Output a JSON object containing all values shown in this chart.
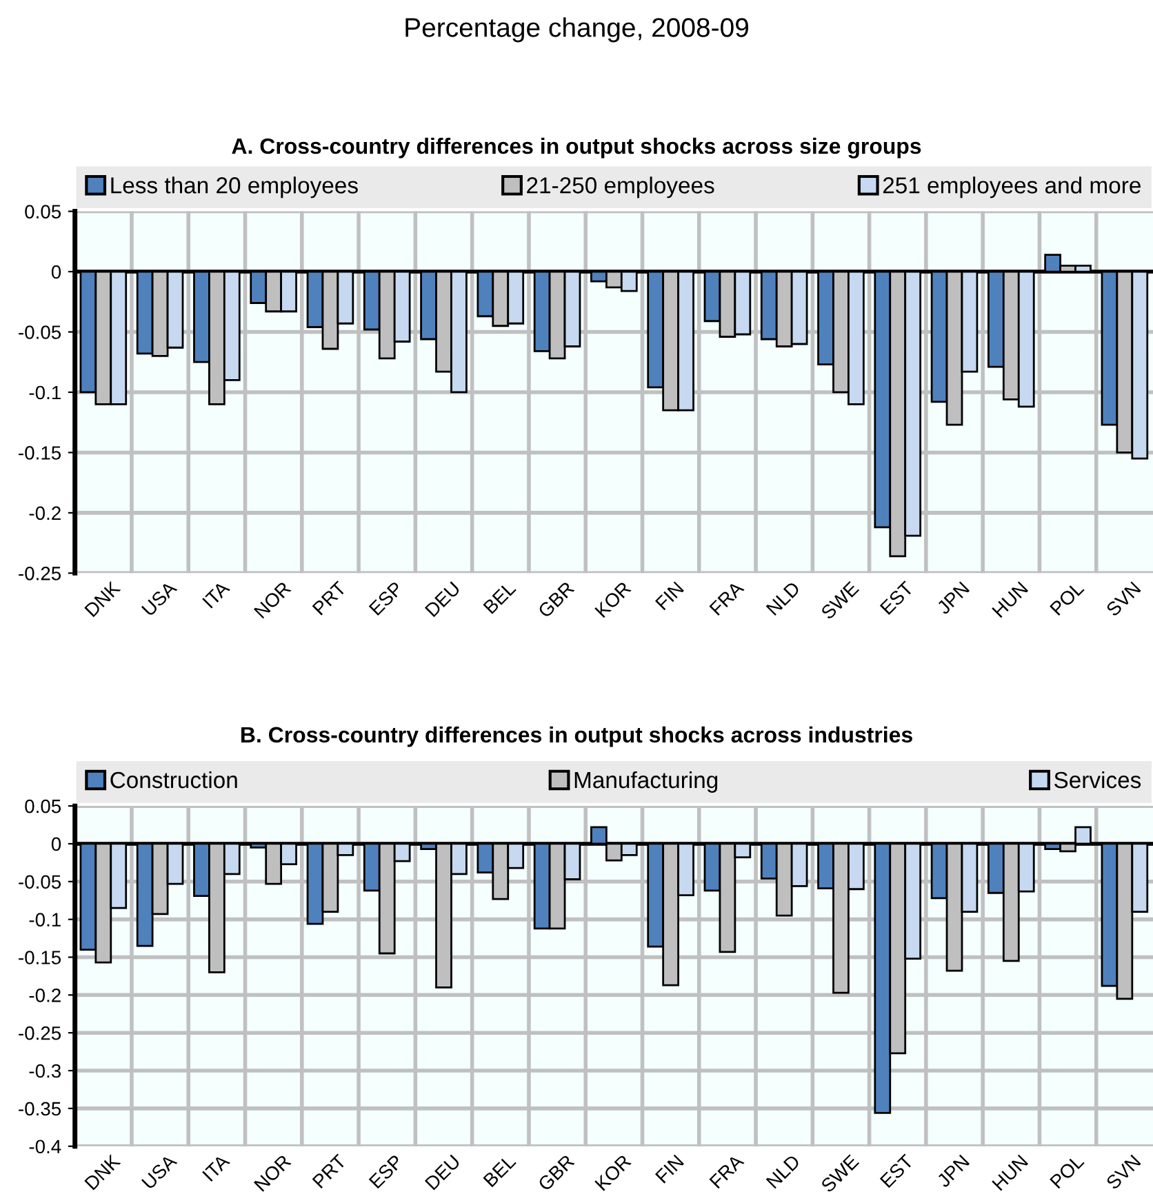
{
  "chart_data": [
    {
      "type": "bar",
      "title": "Percentage change, 2008-09",
      "subtitle": "A. Cross-country differences in output shocks across size groups",
      "categories": [
        "DNK",
        "USA",
        "ITA",
        "NOR",
        "PRT",
        "ESP",
        "DEU",
        "BEL",
        "GBR",
        "KOR",
        "FIN",
        "FRA",
        "NLD",
        "SWE",
        "EST",
        "JPN",
        "HUN",
        "POL",
        "SVN"
      ],
      "series": [
        {
          "name": "Less than 20 employees",
          "color": "#4f81bd",
          "values": [
            -0.1,
            -0.068,
            -0.075,
            -0.026,
            -0.046,
            -0.048,
            -0.056,
            -0.037,
            -0.066,
            -0.008,
            -0.096,
            -0.041,
            -0.056,
            -0.077,
            -0.212,
            -0.108,
            -0.079,
            0.014,
            -0.127
          ]
        },
        {
          "name": "21-250 employees",
          "color": "#bfbfbf",
          "values": [
            -0.11,
            -0.07,
            -0.11,
            -0.033,
            -0.064,
            -0.072,
            -0.083,
            -0.045,
            -0.072,
            -0.013,
            -0.115,
            -0.054,
            -0.062,
            -0.1,
            -0.236,
            -0.127,
            -0.106,
            0.005,
            -0.15
          ]
        },
        {
          "name": "251 employees and more",
          "color": "#c6d9f0",
          "values": [
            -0.11,
            -0.063,
            -0.09,
            -0.033,
            -0.043,
            -0.058,
            -0.1,
            -0.043,
            -0.062,
            -0.016,
            -0.115,
            -0.052,
            -0.06,
            -0.11,
            -0.219,
            -0.083,
            -0.112,
            0.005,
            -0.155
          ]
        }
      ],
      "ylim": [
        -0.25,
        0.05
      ],
      "yticks": [
        0.05,
        0,
        -0.05,
        -0.1,
        -0.15,
        -0.2,
        -0.25
      ],
      "grid": true,
      "legend": "top"
    },
    {
      "type": "bar",
      "title": "B. Cross-country differences in output shocks across industries",
      "categories": [
        "DNK",
        "USA",
        "ITA",
        "NOR",
        "PRT",
        "ESP",
        "DEU",
        "BEL",
        "GBR",
        "KOR",
        "FIN",
        "FRA",
        "NLD",
        "SWE",
        "EST",
        "JPN",
        "HUN",
        "POL",
        "SVN"
      ],
      "series": [
        {
          "name": "Construction",
          "color": "#4f81bd",
          "values": [
            -0.14,
            -0.135,
            -0.069,
            -0.005,
            -0.106,
            -0.062,
            -0.007,
            -0.038,
            -0.112,
            0.022,
            -0.136,
            -0.062,
            -0.046,
            -0.059,
            -0.356,
            -0.072,
            -0.065,
            -0.007,
            -0.188
          ]
        },
        {
          "name": "Manufacturing",
          "color": "#bfbfbf",
          "values": [
            -0.157,
            -0.093,
            -0.17,
            -0.053,
            -0.09,
            -0.145,
            -0.19,
            -0.073,
            -0.112,
            -0.022,
            -0.187,
            -0.143,
            -0.095,
            -0.197,
            -0.277,
            -0.168,
            -0.155,
            -0.01,
            -0.205
          ]
        },
        {
          "name": "Services",
          "color": "#c6d9f0",
          "values": [
            -0.085,
            -0.053,
            -0.04,
            -0.027,
            -0.015,
            -0.023,
            -0.04,
            -0.032,
            -0.047,
            -0.015,
            -0.068,
            -0.018,
            -0.056,
            -0.06,
            -0.152,
            -0.09,
            -0.063,
            0.022,
            -0.09
          ]
        }
      ],
      "ylim": [
        -0.4,
        0.05
      ],
      "yticks": [
        0.05,
        0,
        -0.05,
        -0.1,
        -0.15,
        -0.2,
        -0.25,
        -0.3,
        -0.35,
        -0.4
      ],
      "grid": true,
      "legend": "top"
    }
  ]
}
